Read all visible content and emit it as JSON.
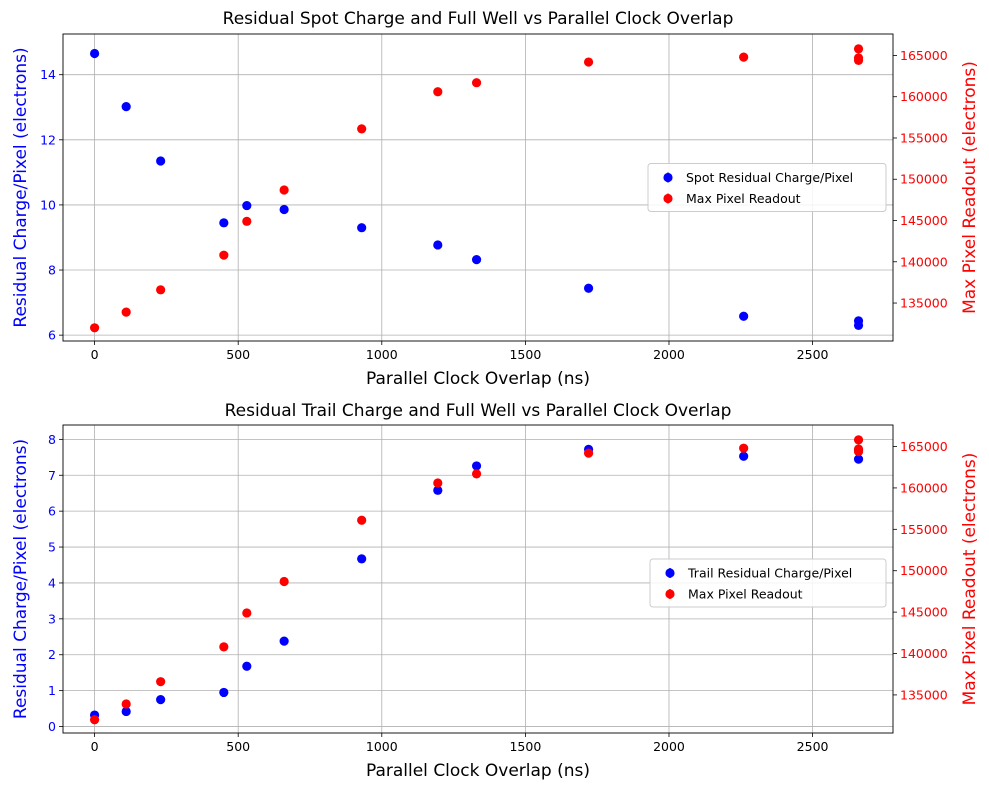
{
  "chart_data": [
    {
      "type": "scatter",
      "title": "Residual Spot Charge and Full Well vs Parallel Clock Overlap",
      "xlabel": "Parallel Clock Overlap (ns)",
      "ylabel_left": "Residual Charge/Pixel (electrons)",
      "ylabel_right": "Max Pixel Readout (electrons)",
      "xlim": [
        -110,
        2780
      ],
      "ylim_left": [
        5.82,
        15.25
      ],
      "ylim_right": [
        130400,
        167600
      ],
      "xticks": [
        0,
        500,
        1000,
        1500,
        2000,
        2500
      ],
      "yticks_left": [
        6,
        8,
        10,
        12,
        14
      ],
      "yticks_right": [
        135000,
        140000,
        145000,
        150000,
        155000,
        160000,
        165000
      ],
      "xtick_labels": [
        "0",
        "500",
        "1000",
        "1500",
        "2000",
        "2500"
      ],
      "ytick_labels_left": [
        "6",
        "8",
        "10",
        "12",
        "14"
      ],
      "ytick_labels_right": [
        "135000",
        "140000",
        "145000",
        "150000",
        "155000",
        "160000",
        "165000"
      ],
      "grid": true,
      "legend_position": "center-right",
      "left_color": "#0000ff",
      "right_color": "#ff0000",
      "series": [
        {
          "name": "Spot Residual Charge/Pixel",
          "axis": "left",
          "color": "#0000ff",
          "x": [
            0,
            110,
            230,
            450,
            530,
            660,
            930,
            1195,
            1330,
            1720,
            2260,
            2660,
            2660
          ],
          "y": [
            14.65,
            13.02,
            11.35,
            9.45,
            9.98,
            9.86,
            9.3,
            8.77,
            8.32,
            7.44,
            6.58,
            6.44,
            6.3
          ]
        },
        {
          "name": "Max Pixel Readout",
          "axis": "right",
          "color": "#ff0000",
          "x": [
            0,
            110,
            230,
            450,
            530,
            660,
            930,
            1195,
            1330,
            1720,
            2260,
            2660,
            2660,
            2660
          ],
          "y": [
            132000,
            133900,
            136600,
            140800,
            144900,
            148700,
            156100,
            160600,
            161700,
            164200,
            164800,
            165800,
            164700,
            164400
          ]
        }
      ]
    },
    {
      "type": "scatter",
      "title": "Residual Trail Charge and Full Well vs Parallel Clock Overlap",
      "xlabel": "Parallel Clock Overlap (ns)",
      "ylabel_left": "Residual Charge/Pixel (electrons)",
      "ylabel_right": "Max Pixel Readout (electrons)",
      "xlim": [
        -110,
        2780
      ],
      "ylim_left": [
        -0.18,
        8.4
      ],
      "ylim_right": [
        130400,
        167600
      ],
      "xticks": [
        0,
        500,
        1000,
        1500,
        2000,
        2500
      ],
      "yticks_left": [
        0,
        1,
        2,
        3,
        4,
        5,
        6,
        7,
        8
      ],
      "yticks_right": [
        135000,
        140000,
        145000,
        150000,
        155000,
        160000,
        165000
      ],
      "xtick_labels": [
        "0",
        "500",
        "1000",
        "1500",
        "2000",
        "2500"
      ],
      "ytick_labels_left": [
        "0",
        "1",
        "2",
        "3",
        "4",
        "5",
        "6",
        "7",
        "8"
      ],
      "ytick_labels_right": [
        "135000",
        "140000",
        "145000",
        "150000",
        "155000",
        "160000",
        "165000"
      ],
      "grid": true,
      "legend_position": "center-right",
      "left_color": "#0000ff",
      "right_color": "#ff0000",
      "series": [
        {
          "name": "Trail Residual Charge/Pixel",
          "axis": "left",
          "color": "#0000ff",
          "x": [
            0,
            110,
            230,
            450,
            530,
            660,
            930,
            1195,
            1330,
            1720,
            2260,
            2660,
            2660
          ],
          "y": [
            0.32,
            0.42,
            0.75,
            0.95,
            1.68,
            2.38,
            4.67,
            6.58,
            7.26,
            7.72,
            7.53,
            7.45,
            7.7
          ]
        },
        {
          "name": "Max Pixel Readout",
          "axis": "right",
          "color": "#ff0000",
          "x": [
            0,
            110,
            230,
            450,
            530,
            660,
            930,
            1195,
            1330,
            1720,
            2260,
            2660,
            2660,
            2660
          ],
          "y": [
            132000,
            133900,
            136600,
            140800,
            144900,
            148700,
            156100,
            160600,
            161700,
            164200,
            164800,
            165800,
            164700,
            164400
          ]
        }
      ]
    }
  ]
}
